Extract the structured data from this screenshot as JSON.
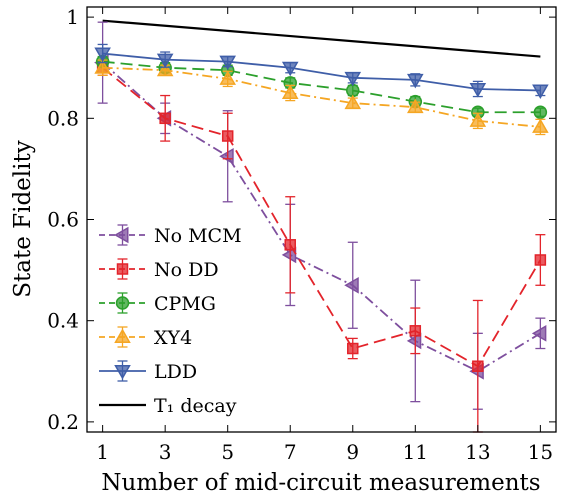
{
  "chart_data": {
    "type": "line",
    "title": "",
    "xlabel": "Number of mid-circuit measurements",
    "ylabel": "State Fidelity",
    "xlim": [
      0.5,
      15.5
    ],
    "ylim": [
      0.18,
      1.02
    ],
    "xticks": [
      1,
      3,
      5,
      7,
      9,
      11,
      13,
      15
    ],
    "xtick_labels": [
      "1",
      "3",
      "5",
      "7",
      "9",
      "11",
      "13",
      "15"
    ],
    "yticks": [
      0.2,
      0.4,
      0.6,
      0.8,
      1.0
    ],
    "ytick_labels": [
      "0.2",
      "0.4",
      "0.6",
      "0.8",
      "1"
    ],
    "grid": false,
    "legend_position": "bottom-left",
    "x": [
      1,
      3,
      5,
      7,
      9,
      11,
      13,
      15
    ],
    "series": [
      {
        "name": "No MCM",
        "color": "#7e4f9e",
        "marker": "triangle-left",
        "dash": "dashdot",
        "values": [
          0.91,
          0.8,
          0.725,
          0.53,
          0.47,
          0.36,
          0.3,
          0.375
        ],
        "errors": [
          0.08,
          0.03,
          0.09,
          0.1,
          0.085,
          0.12,
          0.075,
          0.03
        ]
      },
      {
        "name": "No DD",
        "color": "#e3242b",
        "marker": "square",
        "dash": "dashed",
        "values": [
          0.9,
          0.8,
          0.765,
          0.55,
          0.345,
          0.38,
          0.31,
          0.52
        ],
        "errors": [
          0.015,
          0.045,
          0.045,
          0.095,
          0.02,
          0.045,
          0.13,
          0.05
        ]
      },
      {
        "name": "CPMG",
        "color": "#2ca02c",
        "marker": "circle",
        "dash": "dashed",
        "values": [
          0.912,
          0.9,
          0.895,
          0.87,
          0.855,
          0.833,
          0.812,
          0.812
        ],
        "errors": [
          0.01,
          0.01,
          0.01,
          0.01,
          0.01,
          0.01,
          0.008,
          0.008
        ]
      },
      {
        "name": "XY4",
        "color": "#f5a623",
        "marker": "triangle-up",
        "dash": "dashdot",
        "values": [
          0.9,
          0.895,
          0.878,
          0.85,
          0.83,
          0.822,
          0.795,
          0.783
        ],
        "errors": [
          0.015,
          0.01,
          0.015,
          0.015,
          0.01,
          0.01,
          0.015,
          0.015
        ]
      },
      {
        "name": "LDD",
        "color": "#3f5ea8",
        "marker": "triangle-down",
        "dash": "solid",
        "values": [
          0.928,
          0.916,
          0.912,
          0.9,
          0.88,
          0.876,
          0.858,
          0.855
        ],
        "errors": [
          0.018,
          0.015,
          0.01,
          0.01,
          0.01,
          0.012,
          0.015,
          0.01
        ]
      }
    ],
    "reference_line": {
      "name": "T₁ decay",
      "color": "#000000",
      "x": [
        1,
        15
      ],
      "values": [
        0.993,
        0.922
      ]
    }
  }
}
